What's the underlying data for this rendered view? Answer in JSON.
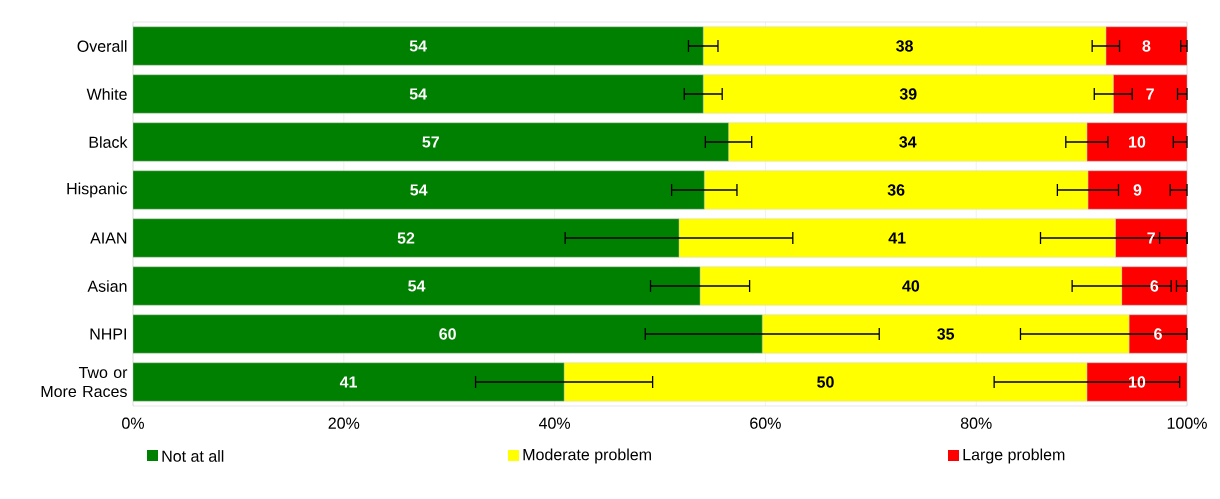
{
  "chart_data": {
    "type": "bar",
    "orientation": "horizontal",
    "stacked": true,
    "categories": [
      "Overall",
      "White",
      "Black",
      "Hispanic",
      "AIAN",
      "Asian",
      "NHPI",
      "Two or More Races"
    ],
    "series": [
      {
        "name": "Not at all",
        "color": "#008000",
        "values": [
          54.1,
          54.1,
          56.5,
          54.2,
          51.8,
          53.8,
          59.7,
          40.9
        ],
        "value_labels": [
          "54",
          "54",
          "57",
          "54",
          "52",
          "54",
          "60",
          "41"
        ],
        "errors": [
          1.4,
          1.8,
          2.2,
          3.1,
          10.8,
          4.7,
          11.1,
          8.4
        ]
      },
      {
        "name": "Moderate problem",
        "color": "#ffff00",
        "values": [
          38.2,
          38.9,
          34.0,
          36.4,
          41.4,
          40.0,
          34.8,
          49.6
        ],
        "value_labels": [
          "38",
          "39",
          "34",
          "36",
          "41",
          "40",
          "35",
          "50"
        ],
        "errors": [
          1.3,
          1.8,
          2.0,
          2.9,
          [
            86.1,
            100
          ],
          4.7,
          [
            84.2,
            100
          ],
          8.8
        ]
      },
      {
        "name": "Large problem",
        "color": "#ff0000",
        "values": [
          7.7,
          7.0,
          9.5,
          9.4,
          6.8,
          6.2,
          5.5,
          9.5
        ],
        "value_labels": [
          "8",
          "7",
          "10",
          "9",
          "7",
          "6",
          "6",
          "10"
        ],
        "errors": [
          [
            99.4,
            100
          ],
          [
            99.1,
            100
          ],
          [
            98.7,
            100
          ],
          [
            98.4,
            100
          ],
          [
            97.4,
            100
          ],
          [
            99.0,
            100
          ],
          null,
          null
        ]
      }
    ],
    "xlim": [
      0,
      100
    ],
    "xticks": [
      {
        "value": 0,
        "label": "0%"
      },
      {
        "value": 20,
        "label": "20%"
      },
      {
        "value": 40,
        "label": "40%"
      },
      {
        "value": 60,
        "label": "60%"
      },
      {
        "value": 80,
        "label": "80%"
      },
      {
        "value": 100,
        "label": "100%"
      }
    ],
    "grid": "x",
    "legend": "bottom"
  }
}
